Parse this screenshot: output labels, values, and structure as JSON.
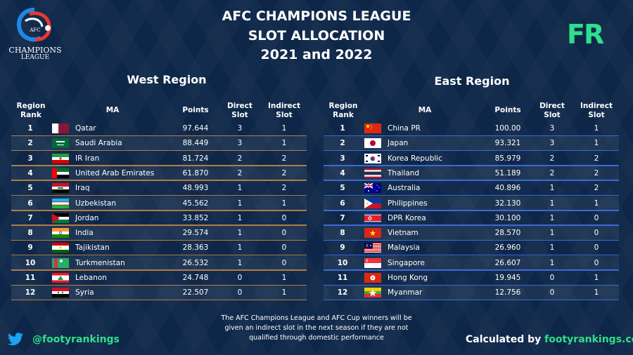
{
  "logo": {
    "small_text": "AFC",
    "line1": "CHAMPIONS",
    "line2": "LEAGUE"
  },
  "header": {
    "title_line1": "AFC CHAMPIONS LEAGUE",
    "title_line2": "SLOT ALLOCATION",
    "title_line3": "2021 and 2022",
    "badge": "FR"
  },
  "columns": {
    "rank1": "Region",
    "rank2": "Rank",
    "ma": "MA",
    "points": "Points",
    "direct1": "Direct",
    "direct2": "Slot",
    "indirect1": "Indirect",
    "indirect2": "Slot"
  },
  "west": {
    "title": "West Region",
    "rows": [
      {
        "rank": "1",
        "ma": "Qatar",
        "flag": "qatar-flag",
        "points": "97.644",
        "direct": "3",
        "indirect": "1"
      },
      {
        "rank": "2",
        "ma": "Saudi Arabia",
        "flag": "saudi-arabia-flag",
        "points": "88.449",
        "direct": "3",
        "indirect": "1"
      },
      {
        "rank": "3",
        "ma": "IR Iran",
        "flag": "iran-flag",
        "points": "81.724",
        "direct": "2",
        "indirect": "2"
      },
      {
        "rank": "4",
        "ma": "United Arab Emirates",
        "flag": "uae-flag",
        "points": "61.870",
        "direct": "2",
        "indirect": "2"
      },
      {
        "rank": "5",
        "ma": "Iraq",
        "flag": "iraq-flag",
        "points": "48.993",
        "direct": "1",
        "indirect": "2"
      },
      {
        "rank": "6",
        "ma": "Uzbekistan",
        "flag": "uzbekistan-flag",
        "points": "45.562",
        "direct": "1",
        "indirect": "1"
      },
      {
        "rank": "7",
        "ma": "Jordan",
        "flag": "jordan-flag",
        "points": "33.852",
        "direct": "1",
        "indirect": "0"
      },
      {
        "rank": "8",
        "ma": "India",
        "flag": "india-flag",
        "points": "29.574",
        "direct": "1",
        "indirect": "0"
      },
      {
        "rank": "9",
        "ma": "Tajikistan",
        "flag": "tajikistan-flag",
        "points": "28.363",
        "direct": "1",
        "indirect": "0"
      },
      {
        "rank": "10",
        "ma": "Turkmenistan",
        "flag": "turkmenistan-flag",
        "points": "26.532",
        "direct": "1",
        "indirect": "0"
      },
      {
        "rank": "11",
        "ma": "Lebanon",
        "flag": "lebanon-flag",
        "points": "24.748",
        "direct": "0",
        "indirect": "1"
      },
      {
        "rank": "12",
        "ma": "Syria",
        "flag": "syria-flag",
        "points": "22.507",
        "direct": "0",
        "indirect": "1"
      }
    ]
  },
  "east": {
    "title": "East Region",
    "rows": [
      {
        "rank": "1",
        "ma": "China PR",
        "flag": "china-flag",
        "points": "100.00",
        "direct": "3",
        "indirect": "1"
      },
      {
        "rank": "2",
        "ma": "Japan",
        "flag": "japan-flag",
        "points": "93.321",
        "direct": "3",
        "indirect": "1"
      },
      {
        "rank": "3",
        "ma": "Korea Republic",
        "flag": "korea-republic-flag",
        "points": "85.979",
        "direct": "2",
        "indirect": "2"
      },
      {
        "rank": "4",
        "ma": "Thailand",
        "flag": "thailand-flag",
        "points": "51.189",
        "direct": "2",
        "indirect": "2"
      },
      {
        "rank": "5",
        "ma": "Australia",
        "flag": "australia-flag",
        "points": "40.896",
        "direct": "1",
        "indirect": "2"
      },
      {
        "rank": "6",
        "ma": "Philippines",
        "flag": "philippines-flag",
        "points": "32.130",
        "direct": "1",
        "indirect": "1"
      },
      {
        "rank": "7",
        "ma": "DPR Korea",
        "flag": "dpr-korea-flag",
        "points": "30.100",
        "direct": "1",
        "indirect": "0"
      },
      {
        "rank": "8",
        "ma": "Vietnam",
        "flag": "vietnam-flag",
        "points": "28.570",
        "direct": "1",
        "indirect": "0"
      },
      {
        "rank": "9",
        "ma": "Malaysia",
        "flag": "malaysia-flag",
        "points": "26.960",
        "direct": "1",
        "indirect": "0"
      },
      {
        "rank": "10",
        "ma": "Singapore",
        "flag": "singapore-flag",
        "points": "26.607",
        "direct": "1",
        "indirect": "0"
      },
      {
        "rank": "11",
        "ma": "Hong Kong",
        "flag": "hong-kong-flag",
        "points": "19.945",
        "direct": "0",
        "indirect": "1"
      },
      {
        "rank": "12",
        "ma": "Myanmar",
        "flag": "myanmar-flag",
        "points": "12.756",
        "direct": "0",
        "indirect": "1"
      }
    ]
  },
  "footer": {
    "note_line1": "The AFC Champions League and AFC Cup winners will be",
    "note_line2": "given an indirect slot in the next season if they are not",
    "note_line3": "qualified through domestic performance",
    "handle": "@footyrankings",
    "calc_prefix": "Calculated by",
    "calc_site": "footyrankings.com",
    "twitter_icon": "twitter-bird-icon"
  },
  "colors": {
    "background": "#0e2748",
    "accent_green": "#2ee08b",
    "west_line": "#b37c45",
    "east_line": "#3b6ad6"
  }
}
